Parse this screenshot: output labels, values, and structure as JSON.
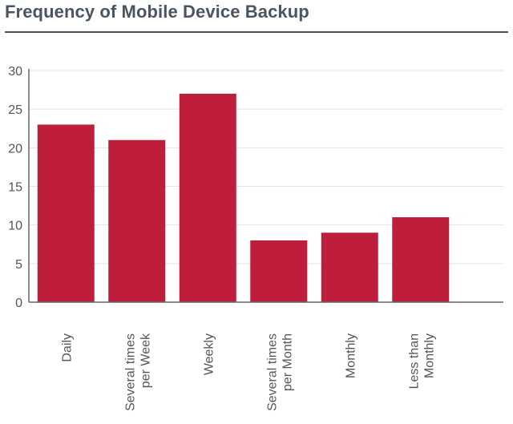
{
  "chart_data": {
    "type": "bar",
    "title": "Frequency of Mobile Device Backup",
    "categories": [
      [
        "Daily"
      ],
      [
        "Several times",
        "per Week"
      ],
      [
        "Weekly"
      ],
      [
        "Several times",
        "per Month"
      ],
      [
        "Monthly"
      ],
      [
        "Less than",
        "Monthly"
      ]
    ],
    "values": [
      23,
      21,
      27,
      8,
      9,
      11
    ],
    "ylim": [
      0,
      30
    ],
    "yticks": [
      0,
      5,
      10,
      15,
      20,
      25,
      30
    ],
    "xlabel": "",
    "ylabel": "",
    "grid": true,
    "colors": {
      "bar": "#be1e3c",
      "title": "#4a5561",
      "axis": "#666666",
      "grid": "#e3e3e3"
    }
  }
}
